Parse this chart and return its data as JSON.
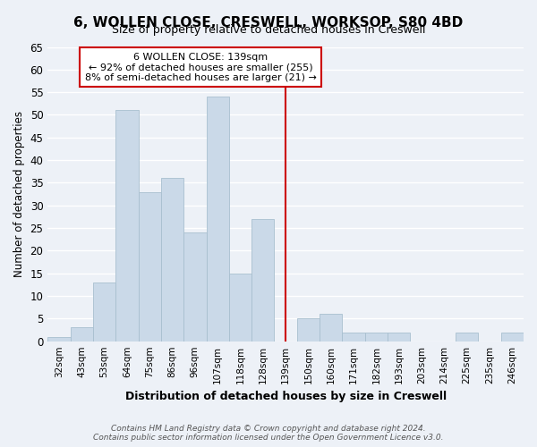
{
  "title": "6, WOLLEN CLOSE, CRESWELL, WORKSOP, S80 4BD",
  "subtitle": "Size of property relative to detached houses in Creswell",
  "xlabel": "Distribution of detached houses by size in Creswell",
  "ylabel": "Number of detached properties",
  "bar_labels": [
    "32sqm",
    "43sqm",
    "53sqm",
    "64sqm",
    "75sqm",
    "86sqm",
    "96sqm",
    "107sqm",
    "118sqm",
    "128sqm",
    "139sqm",
    "150sqm",
    "160sqm",
    "171sqm",
    "182sqm",
    "193sqm",
    "203sqm",
    "214sqm",
    "225sqm",
    "235sqm",
    "246sqm"
  ],
  "bar_values": [
    1,
    3,
    13,
    51,
    33,
    36,
    24,
    54,
    15,
    27,
    0,
    5,
    6,
    2,
    2,
    2,
    0,
    0,
    2,
    0,
    2
  ],
  "bar_color": "#cad9e8",
  "bar_edgecolor": "#a8bfcf",
  "vline_x_index": 10,
  "annotation_title": "6 WOLLEN CLOSE: 139sqm",
  "annotation_line1": "← 92% of detached houses are smaller (255)",
  "annotation_line2": "8% of semi-detached houses are larger (21) →",
  "annotation_box_edgecolor": "#cc0000",
  "vline_color": "#cc0000",
  "ylim": [
    0,
    65
  ],
  "yticks": [
    0,
    5,
    10,
    15,
    20,
    25,
    30,
    35,
    40,
    45,
    50,
    55,
    60,
    65
  ],
  "footer_line1": "Contains HM Land Registry data © Crown copyright and database right 2024.",
  "footer_line2": "Contains public sector information licensed under the Open Government Licence v3.0.",
  "background_color": "#edf1f7",
  "grid_color": "#d8e0ec"
}
